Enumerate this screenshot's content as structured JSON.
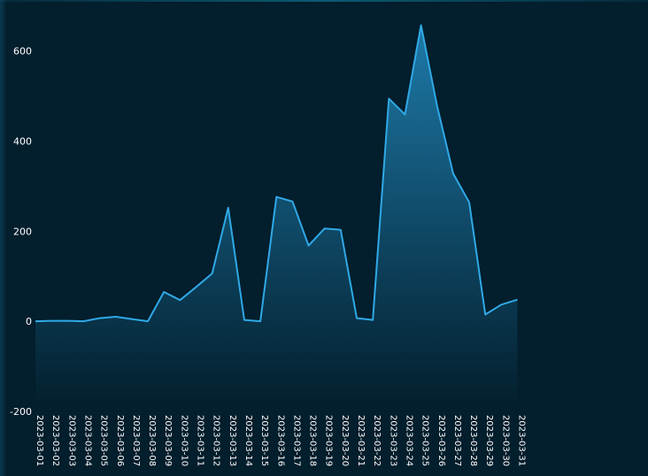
{
  "chart_data": {
    "type": "area",
    "title": "",
    "xlabel": "",
    "ylabel": "",
    "ylim": [
      -200,
      660
    ],
    "yticks": [
      600,
      400,
      200,
      0,
      -200
    ],
    "grid": false,
    "legend": "none",
    "categories": [
      "2023-03-01",
      "2023-03-02",
      "2023-03-03",
      "2023-03-04",
      "2023-03-05",
      "2023-03-06",
      "2023-03-07",
      "2023-03-08",
      "2023-03-09",
      "2023-03-10",
      "2023-03-11",
      "2023-03-12",
      "2023-03-13",
      "2023-03-14",
      "2023-03-15",
      "2023-03-16",
      "2023-03-17",
      "2023-03-18",
      "2023-03-19",
      "2023-03-20",
      "2023-03-21",
      "2023-03-22",
      "2023-03-23",
      "2023-03-24",
      "2023-03-25",
      "2023-03-26",
      "2023-03-27",
      "2023-03-28",
      "2023-03-29",
      "2023-03-30",
      "2023-03-31"
    ],
    "series": [
      {
        "values": [
          0,
          1,
          1,
          0,
          7,
          10,
          5,
          0,
          65,
          47,
          76,
          106,
          252,
          3,
          0,
          276,
          266,
          168,
          206,
          203,
          7,
          3,
          494,
          459,
          657,
          478,
          328,
          264,
          15,
          37,
          48
        ]
      }
    ],
    "colors": {
      "background": "#031e2c",
      "line": "#2fa9e6",
      "area_top": "#1f7fb0",
      "area_bottom": "#031e2c",
      "text": "#ffffff"
    }
  }
}
